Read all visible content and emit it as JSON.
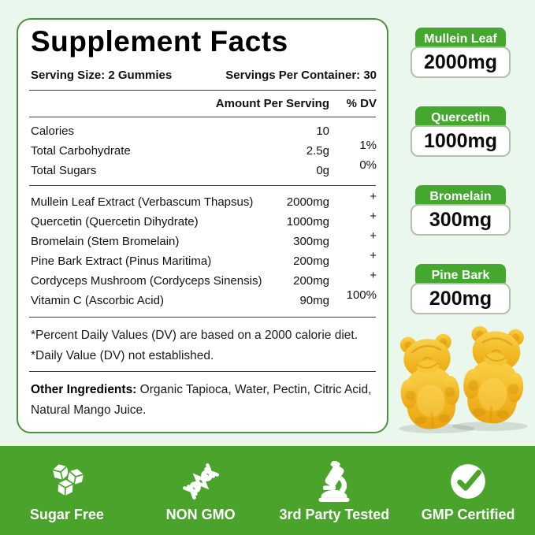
{
  "panel": {
    "title": "Supplement Facts",
    "serving_size": "Serving Size: 2 Gummies",
    "servings_per_container": "Servings Per Container: 30",
    "col_amount": "Amount Per Serving",
    "col_dv": "% DV",
    "nutrients": [
      {
        "name": "Calories",
        "amount": "10",
        "dv": ""
      },
      {
        "name": "Total Carbohydrate",
        "amount": "2.5g",
        "dv": "1%"
      },
      {
        "name": "Total Sugars",
        "amount": "0g",
        "dv": "0%"
      }
    ],
    "ingredients": [
      {
        "name": "Mullein Leaf Extract (Verbascum Thapsus)",
        "amount": "2000mg",
        "dv": "+"
      },
      {
        "name": "Quercetin (Quercetin Dihydrate)",
        "amount": "1000mg",
        "dv": "+"
      },
      {
        "name": "Bromelain (Stem Bromelain)",
        "amount": "300mg",
        "dv": "+"
      },
      {
        "name": "Pine Bark Extract (Pinus Maritima)",
        "amount": "200mg",
        "dv": "+"
      },
      {
        "name": "Cordyceps Mushroom (Cordyceps Sinensis)",
        "amount": "200mg",
        "dv": "+"
      },
      {
        "name": "Vitamin C (Ascorbic Acid)",
        "amount": "90mg",
        "dv": "100%"
      }
    ],
    "footnotes": [
      "*Percent Daily Values (DV) are based on a 2000 calorie diet.",
      "*Daily Value (DV) not established."
    ],
    "other_ingredients_label": "Other Ingredients:",
    "other_ingredients_text": " Organic Tapioca, Water, Pectin, Citric Acid, Natural Mango Juice."
  },
  "highlights": [
    {
      "name": "Mullein Leaf",
      "amount": "2000mg"
    },
    {
      "name": "Quercetin",
      "amount": "1000mg"
    },
    {
      "name": "Bromelain",
      "amount": "300mg"
    },
    {
      "name": "Pine Bark",
      "amount": "200mg"
    }
  ],
  "badges": [
    {
      "icon": "sugar-cubes-icon",
      "label": "Sugar Free"
    },
    {
      "icon": "dna-icon",
      "label": "NON GMO"
    },
    {
      "icon": "microscope-icon",
      "label": "3rd Party Tested"
    },
    {
      "icon": "check-circle-icon",
      "label": "GMP Certified"
    }
  ],
  "colors": {
    "accent_green": "#4aa42c",
    "tab_green": "#44a72e",
    "panel_border_green": "#4f9040",
    "background_mint": "#e9f7ec",
    "gummy_gold": "#f2b822"
  }
}
